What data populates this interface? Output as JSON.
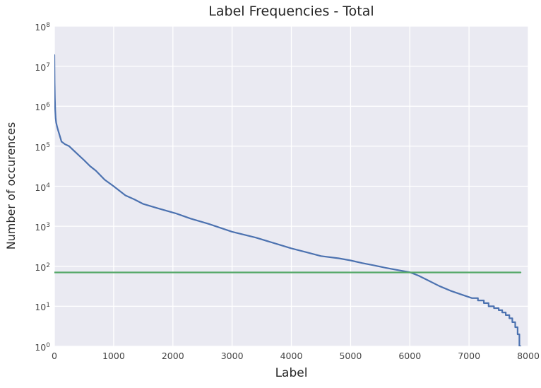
{
  "chart_data": {
    "type": "line",
    "title": "Label Frequencies - Total",
    "xlabel": "Label",
    "ylabel": "Number of occurences",
    "x_axis": {
      "min": 0,
      "max": 8000,
      "ticks": [
        0,
        1000,
        2000,
        3000,
        4000,
        5000,
        6000,
        7000,
        8000
      ]
    },
    "y_axis": {
      "scale": "log",
      "min": 1,
      "max": 100000000,
      "tick_exponents": [
        0,
        1,
        2,
        3,
        4,
        5,
        6,
        7,
        8
      ]
    },
    "grid": true,
    "legend": false,
    "series": [
      {
        "name": "label-frequency-curve",
        "color": "#4C72B0",
        "points": [
          [
            0,
            19000000
          ],
          [
            4,
            4000000
          ],
          [
            8,
            1600000
          ],
          [
            14,
            800000
          ],
          [
            22,
            500000
          ],
          [
            30,
            390000
          ],
          [
            45,
            310000
          ],
          [
            60,
            260000
          ],
          [
            90,
            185000
          ],
          [
            120,
            130000
          ],
          [
            180,
            112000
          ],
          [
            250,
            100000
          ],
          [
            320,
            80000
          ],
          [
            420,
            58000
          ],
          [
            500,
            45000
          ],
          [
            600,
            32000
          ],
          [
            700,
            24500
          ],
          [
            850,
            14500
          ],
          [
            1000,
            10000
          ],
          [
            1200,
            5900
          ],
          [
            1350,
            4700
          ],
          [
            1500,
            3600
          ],
          [
            1750,
            2800
          ],
          [
            2050,
            2100
          ],
          [
            2300,
            1550
          ],
          [
            2600,
            1150
          ],
          [
            3000,
            730
          ],
          [
            3400,
            520
          ],
          [
            3800,
            345
          ],
          [
            4000,
            280
          ],
          [
            4250,
            225
          ],
          [
            4500,
            180
          ],
          [
            4800,
            158
          ],
          [
            5000,
            140
          ],
          [
            5200,
            120
          ],
          [
            5400,
            105
          ],
          [
            5600,
            91
          ],
          [
            5800,
            80
          ],
          [
            6000,
            71
          ],
          [
            6150,
            58
          ],
          [
            6300,
            45
          ],
          [
            6500,
            32
          ],
          [
            6700,
            24
          ],
          [
            6900,
            19
          ],
          [
            7050,
            16
          ],
          [
            7150,
            14
          ],
          [
            7250,
            12
          ],
          [
            7330,
            10
          ],
          [
            7420,
            9
          ],
          [
            7500,
            8
          ],
          [
            7560,
            7
          ],
          [
            7620,
            6
          ],
          [
            7680,
            5
          ],
          [
            7730,
            4
          ],
          [
            7780,
            3
          ],
          [
            7820,
            2
          ],
          [
            7850,
            1
          ],
          [
            7870,
            1
          ]
        ]
      },
      {
        "name": "threshold-line",
        "type": "hline",
        "color": "#55A868",
        "y": 70,
        "x_start": 0,
        "x_end": 7870
      }
    ],
    "colors": {
      "line": "#4C72B0",
      "threshold": "#55A868",
      "plot_background": "#EAEAF2",
      "grid": "#FFFFFF",
      "text": "#262626",
      "tick_text": "#444444"
    }
  }
}
